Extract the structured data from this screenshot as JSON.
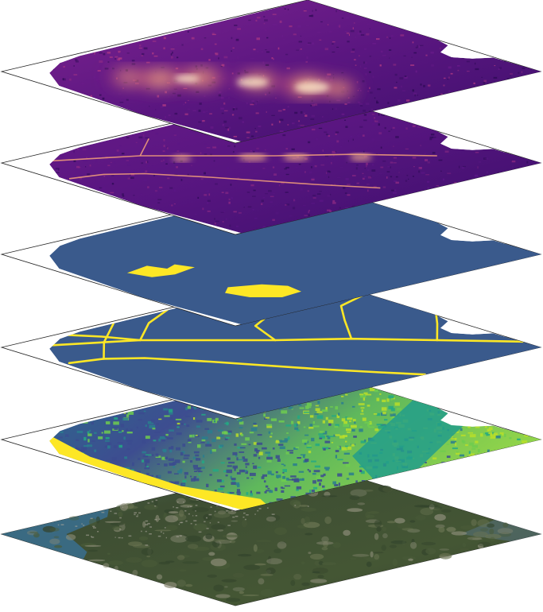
{
  "diagram": {
    "layers": [
      {
        "id": "heat-bright",
        "kind": "magma",
        "palette": [
          "#2d0a55",
          "#6a1b8a",
          "#b13b83",
          "#f06a5a",
          "#fdd9a8"
        ]
      },
      {
        "id": "heat-roads",
        "kind": "magma",
        "palette": [
          "#2d0a55",
          "#5b1686",
          "#8d2a84",
          "#e35e62",
          "#fde0b8"
        ]
      },
      {
        "id": "patches-mask",
        "kind": "mask",
        "palette": [
          "#3a5a8c",
          "#fde725"
        ]
      },
      {
        "id": "road-network",
        "kind": "mask",
        "palette": [
          "#3a5a8c",
          "#fde725"
        ]
      },
      {
        "id": "land-classes",
        "kind": "viridis",
        "palette": [
          "#3b4b8f",
          "#2a7e8e",
          "#23a884",
          "#6fcc4f",
          "#b8de29",
          "#fde725"
        ]
      },
      {
        "id": "satellite",
        "kind": "satellite",
        "palette": [
          "#33442c",
          "#4a5b39",
          "#6a7452",
          "#8b8c77",
          "#3f6a8a"
        ]
      }
    ]
  }
}
